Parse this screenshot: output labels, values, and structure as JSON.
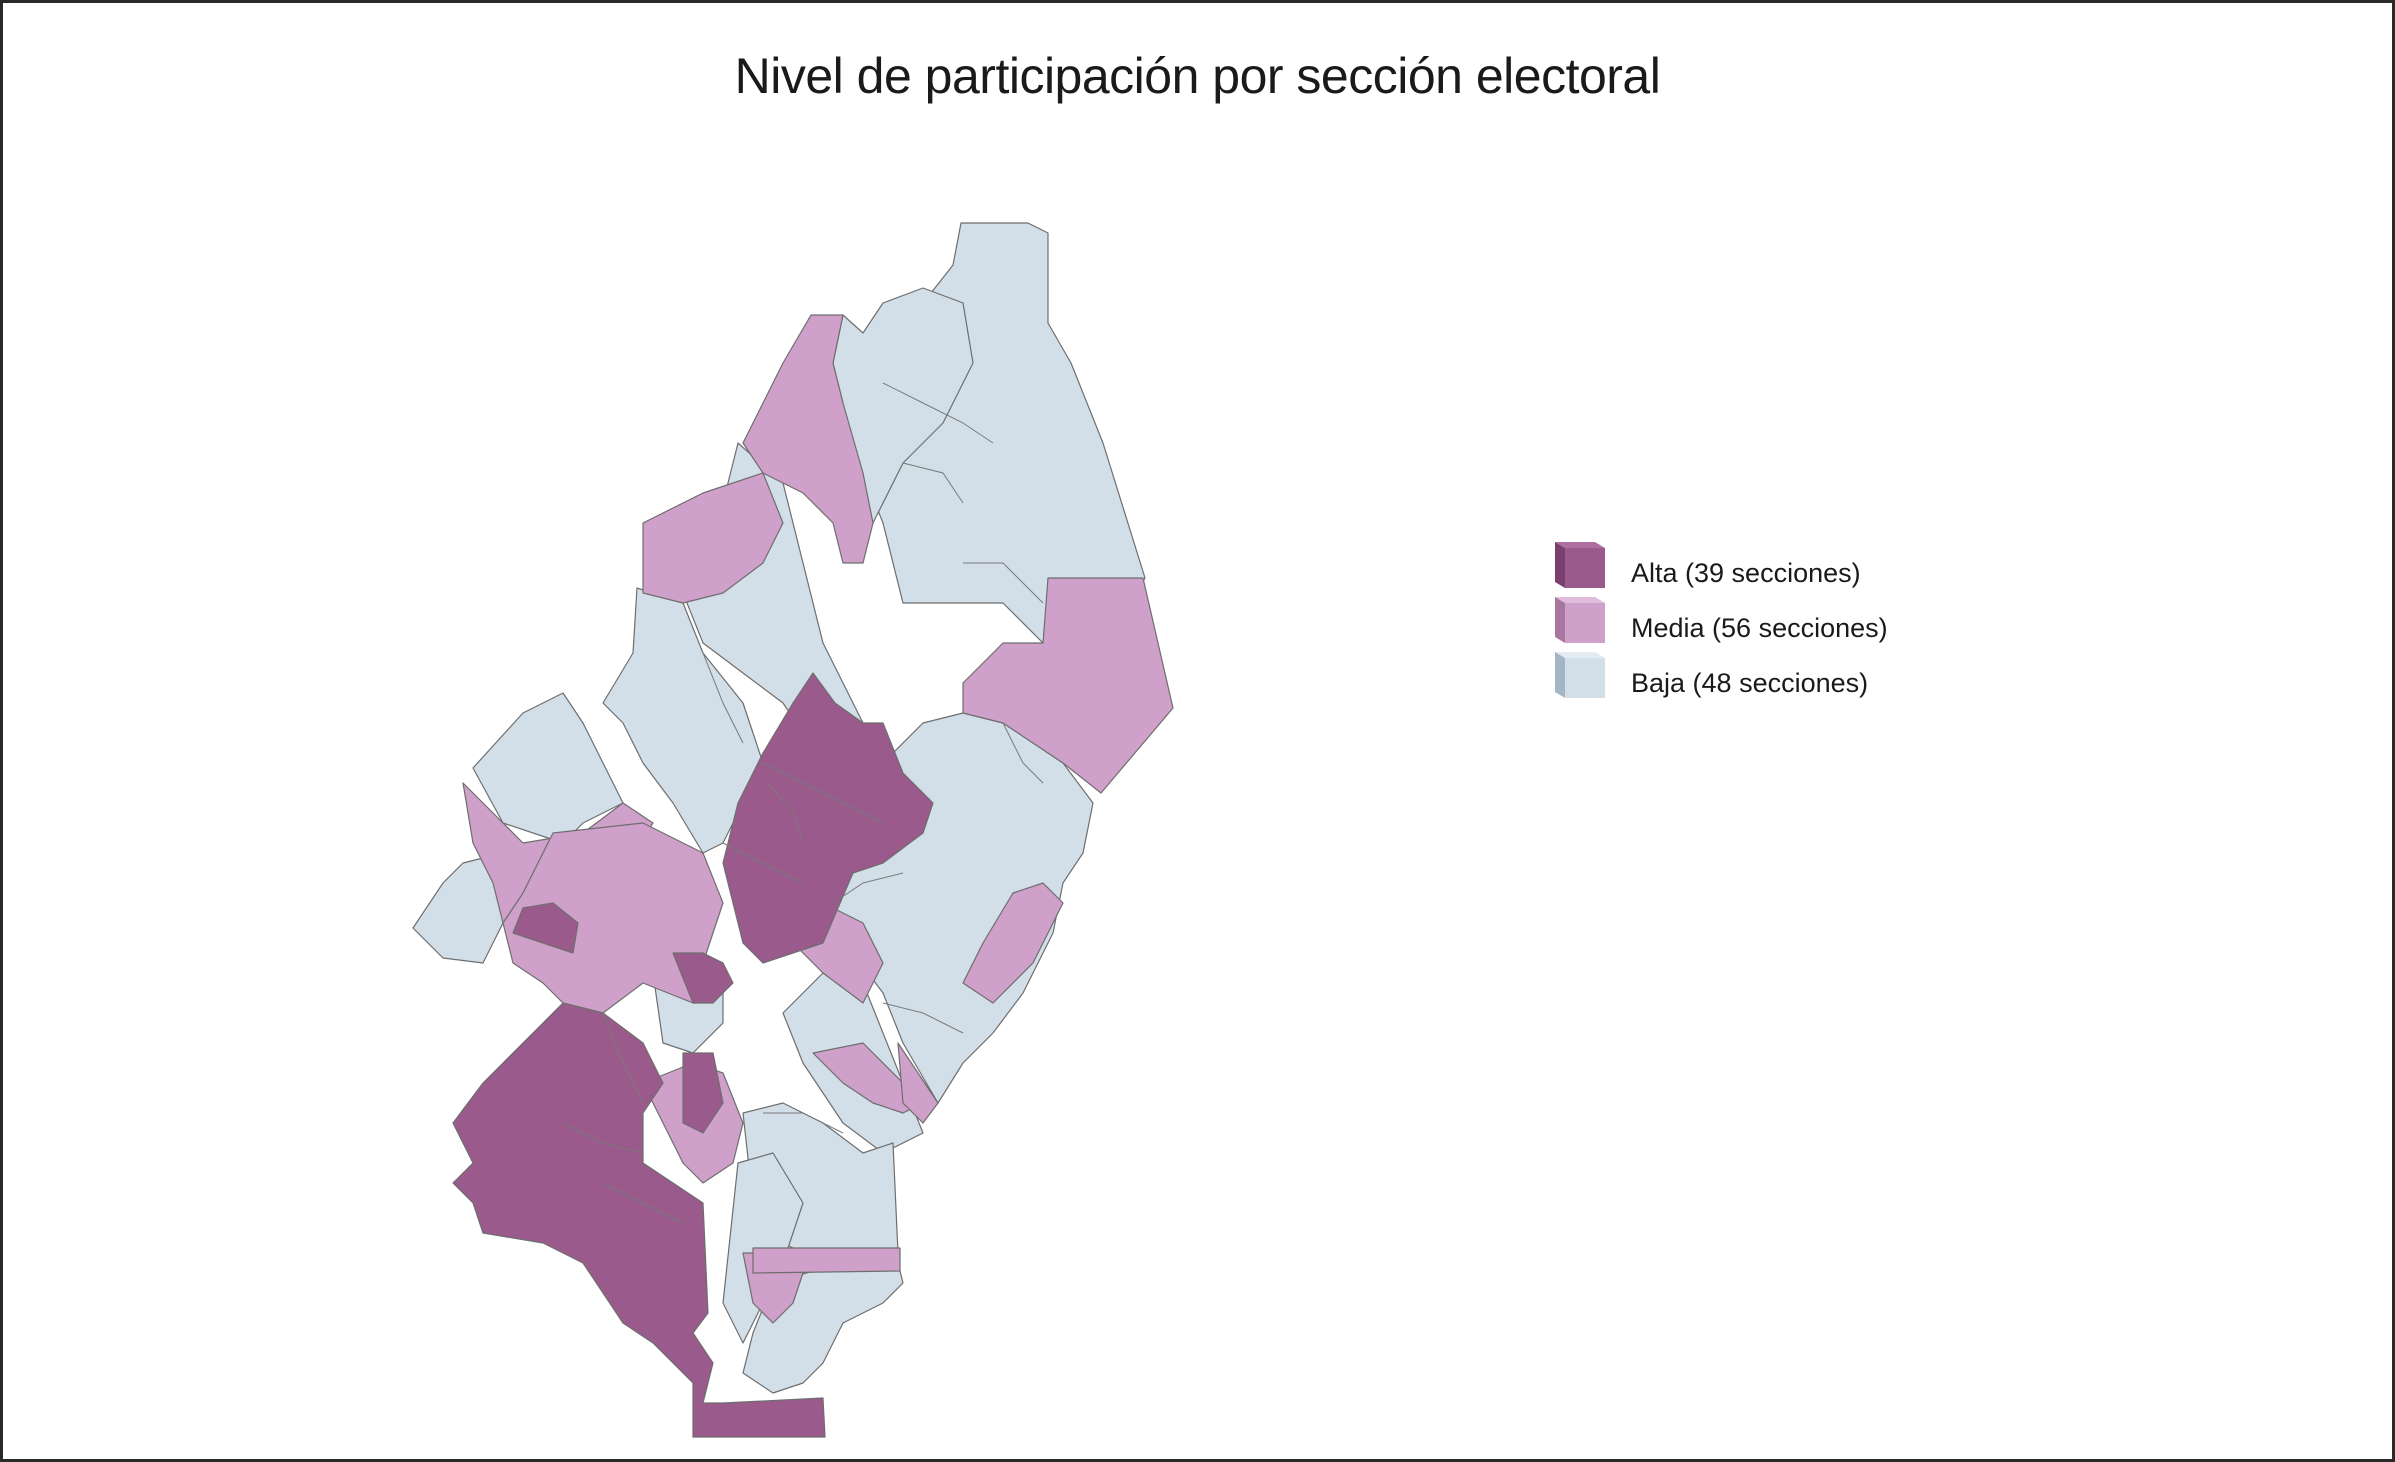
{
  "map": {
    "title": "Nivel de participación por sección electoral",
    "colors": {
      "alta": "#9a5a8c",
      "media": "#cfa0c9",
      "baja": "#d2dfe9",
      "border": "#6e6e6e"
    },
    "legend": [
      {
        "key": "alta",
        "label": "Alta (39 secciones)",
        "icon": "purple-dark-cube-icon"
      },
      {
        "key": "media",
        "label": "Media (56 secciones)",
        "icon": "purple-light-cube-icon"
      },
      {
        "key": "baja",
        "label": "Baja (48 secciones)",
        "icon": "blue-gray-cube-icon"
      }
    ]
  }
}
